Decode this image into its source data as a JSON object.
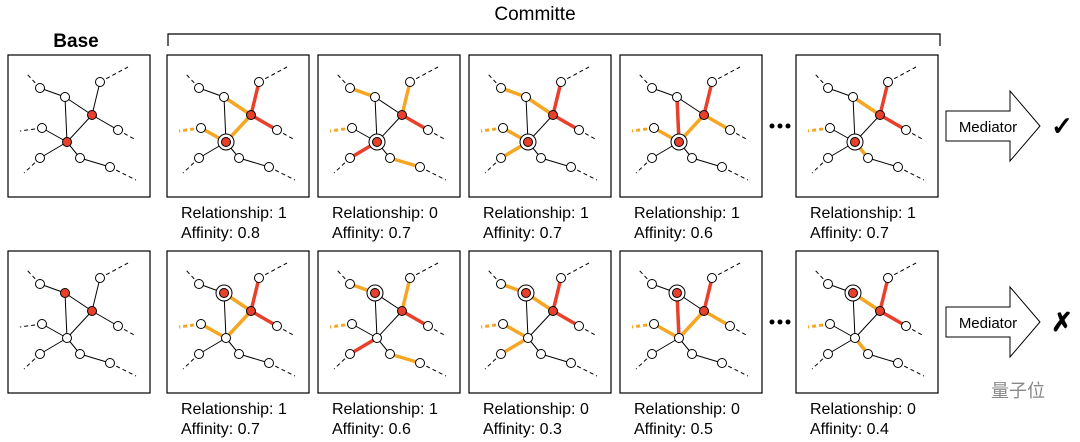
{
  "header": {
    "title": "Committe"
  },
  "base_label": "Base",
  "rows": [
    {
      "panels": [
        {
          "relationship": "Relationship: 1",
          "affinity": "Affinity: 0.8"
        },
        {
          "relationship": "Relationship: 0",
          "affinity": "Affinity: 0.7"
        },
        {
          "relationship": "Relationship: 1",
          "affinity": "Affinity: 0.7"
        },
        {
          "relationship": "Relationship: 1",
          "affinity": "Affinity: 0.6"
        },
        {
          "relationship": "Relationship: 1",
          "affinity": "Affinity: 0.7"
        }
      ],
      "mediator": "Mediator",
      "verdict": "✓"
    },
    {
      "panels": [
        {
          "relationship": "Relationship: 1",
          "affinity": "Affinity: 0.7"
        },
        {
          "relationship": "Relationship: 1",
          "affinity": "Affinity: 0.6"
        },
        {
          "relationship": "Relationship: 0",
          "affinity": "Affinity: 0.3"
        },
        {
          "relationship": "Relationship: 0",
          "affinity": "Affinity: 0.5"
        },
        {
          "relationship": "Relationship: 0",
          "affinity": "Affinity: 0.4"
        }
      ],
      "mediator": "Mediator",
      "verdict": "✗"
    }
  ],
  "watermark": "量子位"
}
